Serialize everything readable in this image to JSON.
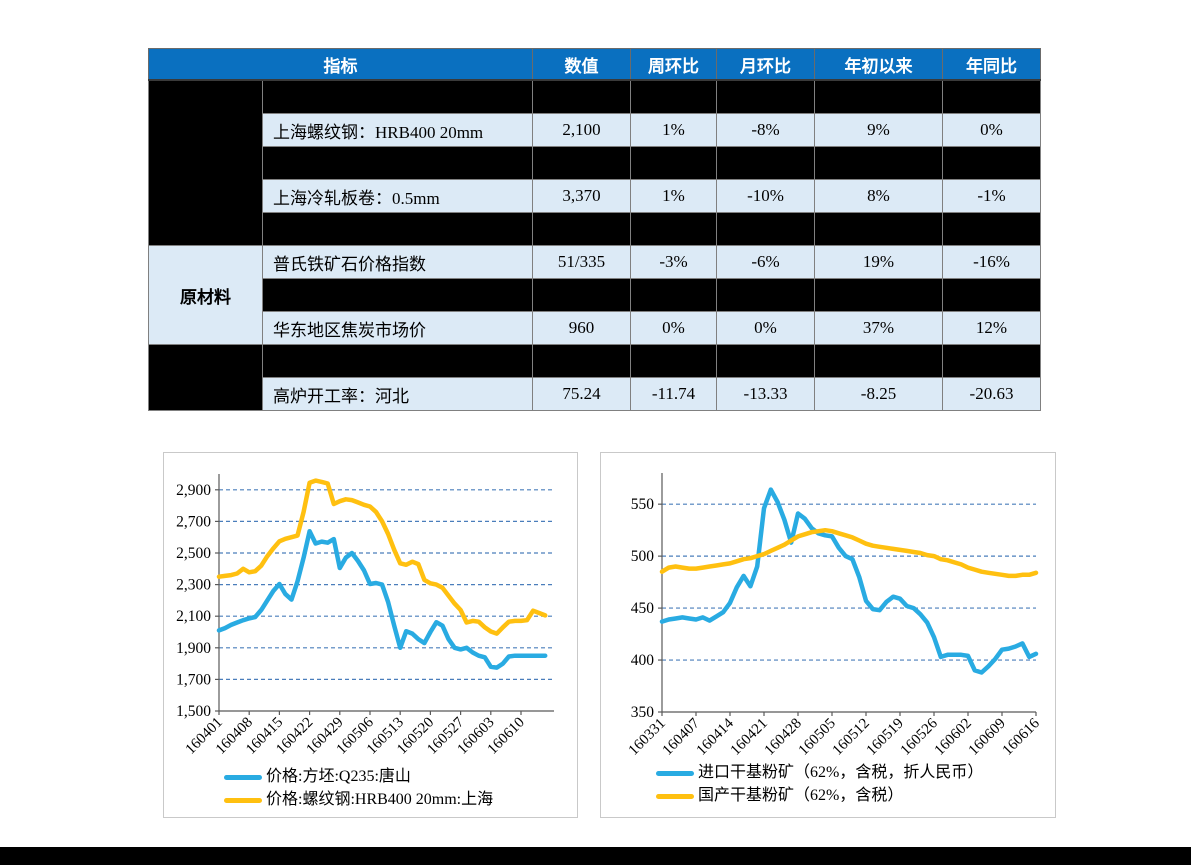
{
  "table": {
    "headers": [
      "指标",
      "数值",
      "周环比",
      "月环比",
      "年初以来",
      "年同比"
    ],
    "header_bg": "#0A70C0",
    "row_bg": "#DCEAF6",
    "spacer_bg": "#000000",
    "category_cells": [
      {
        "label": "",
        "span": 5,
        "black": true
      },
      {
        "label": "原材料",
        "span": 3,
        "black": false
      },
      {
        "label": "",
        "span": 2,
        "black": true
      }
    ],
    "rows": [
      {
        "indicator": "上海螺纹钢：HRB400 20mm",
        "values": [
          "2,100",
          "1%",
          "-8%",
          "9%",
          "0%"
        ]
      },
      {
        "indicator": "上海冷轧板卷：0.5mm",
        "values": [
          "3,370",
          "1%",
          "-10%",
          "8%",
          "-1%"
        ]
      },
      {
        "indicator": "普氏铁矿石价格指数",
        "values": [
          "51/335",
          "-3%",
          "-6%",
          "19%",
          "-16%"
        ]
      },
      {
        "indicator": "华东地区焦炭市场价",
        "values": [
          "960",
          "0%",
          "0%",
          "37%",
          "12%"
        ]
      },
      {
        "indicator": "高炉开工率：河北",
        "values": [
          "75.24",
          "-11.74",
          "-13.33",
          "-8.25",
          "-20.63"
        ]
      }
    ]
  },
  "chart_data": [
    {
      "type": "line",
      "title": "",
      "x_tick_labels": [
        "160401",
        "160408",
        "160415",
        "160422",
        "160429",
        "160506",
        "160513",
        "160520",
        "160527",
        "160603",
        "160610"
      ],
      "points_per_tick_interval": 5,
      "ylim": [
        1500,
        3000
      ],
      "yticks": [
        1500,
        1700,
        1900,
        2100,
        2300,
        2500,
        2700,
        2900
      ],
      "ytick_labels": [
        "1,500",
        "1,700",
        "1,900",
        "2,100",
        "2,300",
        "2,500",
        "2,700",
        "2,900"
      ],
      "grid": "horizontal-dashed",
      "grid_color": "#4A7EBB",
      "axis_color": "#595959",
      "legend_position": "bottom-left",
      "series": [
        {
          "name": "价格:方坯:Q235:唐山",
          "color": "#29ABE2",
          "values": [
            2010,
            2025,
            2045,
            2060,
            2075,
            2086,
            2095,
            2140,
            2200,
            2260,
            2304,
            2240,
            2205,
            2320,
            2470,
            2638,
            2560,
            2572,
            2565,
            2588,
            2405,
            2470,
            2500,
            2450,
            2390,
            2304,
            2310,
            2300,
            2190,
            2040,
            1900,
            2005,
            1990,
            1955,
            1930,
            2000,
            2062,
            2040,
            1955,
            1900,
            1890,
            1900,
            1870,
            1850,
            1840,
            1780,
            1775,
            1800,
            1845,
            1850,
            1850,
            1850,
            1850,
            1850,
            1850
          ]
        },
        {
          "name": "价格:螺纹钢:HRB400 20mm:上海",
          "color": "#FFC010",
          "values": [
            2350,
            2355,
            2360,
            2370,
            2400,
            2378,
            2385,
            2420,
            2480,
            2530,
            2574,
            2590,
            2600,
            2610,
            2760,
            2945,
            2958,
            2950,
            2940,
            2810,
            2828,
            2840,
            2835,
            2820,
            2805,
            2794,
            2760,
            2700,
            2620,
            2520,
            2435,
            2425,
            2445,
            2430,
            2330,
            2308,
            2300,
            2280,
            2230,
            2180,
            2139,
            2060,
            2070,
            2065,
            2030,
            2003,
            1990,
            2030,
            2065,
            2070,
            2070,
            2075,
            2135,
            2120,
            2105
          ]
        }
      ]
    },
    {
      "type": "line",
      "title": "",
      "x_tick_labels": [
        "160331",
        "160407",
        "160414",
        "160421",
        "160428",
        "160505",
        "160512",
        "160519",
        "160526",
        "160602",
        "160609",
        "160616"
      ],
      "points_per_tick_interval": 5,
      "ylim": [
        350,
        580
      ],
      "yticks": [
        350,
        400,
        450,
        500,
        550
      ],
      "ytick_labels": [
        "350",
        "400",
        "450",
        "500",
        "550"
      ],
      "grid": "horizontal-dashed",
      "grid_color": "#4A7EBB",
      "axis_color": "#595959",
      "legend_position": "bottom-left",
      "series": [
        {
          "name": "进口干基粉矿（62%，含税，折人民币）",
          "color": "#29ABE2",
          "values": [
            437,
            439,
            440,
            441,
            440,
            439,
            441,
            438,
            442,
            446,
            455,
            470,
            481,
            471,
            490,
            546,
            564,
            552,
            535,
            513,
            541,
            536,
            527,
            522,
            520,
            519,
            508,
            500,
            497,
            480,
            457,
            449,
            448,
            456,
            461,
            459,
            452,
            450,
            444,
            436,
            422,
            403,
            405,
            405,
            405,
            404,
            390,
            388,
            394,
            401,
            410,
            411,
            413,
            416,
            403,
            406
          ]
        },
        {
          "name": "国产干基粉矿（62%，含税）",
          "color": "#FFC010",
          "values": [
            485,
            489,
            490,
            489,
            488,
            488,
            489,
            490,
            491,
            492,
            493,
            495,
            497,
            498,
            500,
            502,
            505,
            508,
            511,
            515,
            519,
            521,
            523,
            524,
            525,
            524,
            522,
            520,
            518,
            515,
            512,
            510,
            509,
            508,
            507,
            506,
            505,
            504,
            503,
            501,
            500,
            497,
            496,
            494,
            492,
            489,
            487,
            485,
            484,
            483,
            482,
            481,
            481,
            482,
            482,
            484
          ]
        }
      ]
    }
  ]
}
